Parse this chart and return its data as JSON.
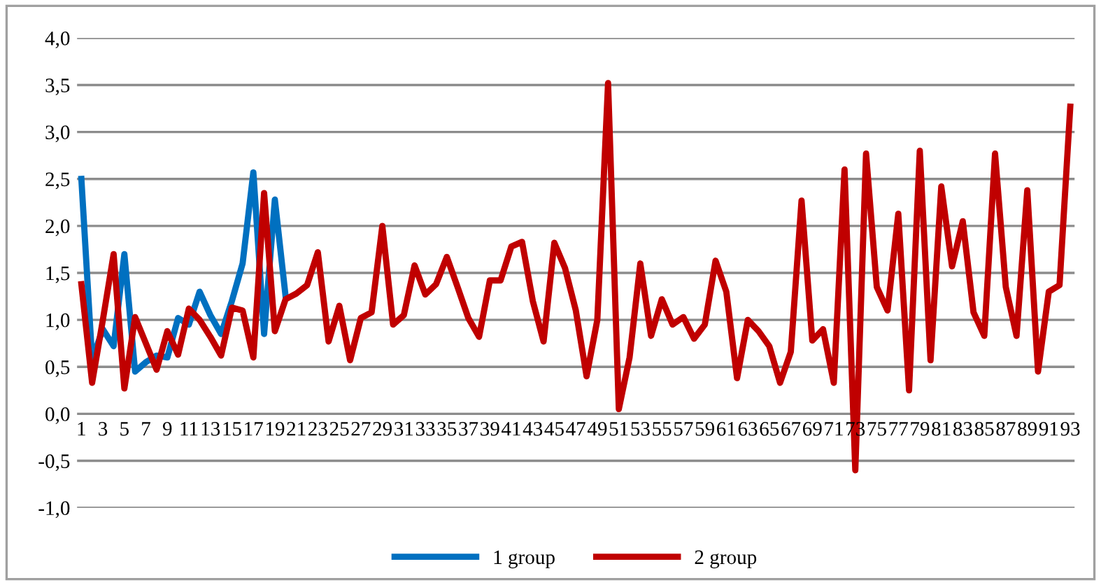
{
  "chart_data": {
    "type": "line",
    "categories": [
      "1",
      null,
      "3",
      null,
      "5",
      null,
      "7",
      null,
      "9",
      null,
      "11",
      null,
      "13",
      null,
      "15",
      null,
      "17",
      null,
      "19",
      null,
      "21",
      null,
      "23",
      null,
      "25",
      null,
      "27",
      null,
      "29",
      null,
      "31",
      null,
      "33",
      null,
      "35",
      null,
      "37",
      null,
      "39",
      null,
      "41",
      null,
      "43",
      null,
      "45",
      null,
      "47",
      null,
      "49",
      null,
      "51",
      null,
      "53",
      null,
      "55",
      null,
      "57",
      null,
      "59",
      null,
      "61",
      null,
      "63",
      null,
      "65",
      null,
      "67",
      null,
      "69",
      null,
      "71",
      null,
      "73",
      null,
      "75",
      null,
      "77",
      null,
      "79",
      null,
      "81",
      null,
      "83",
      null,
      "85",
      null,
      "87",
      null,
      "89",
      null,
      "91",
      null,
      "93"
    ],
    "series": [
      {
        "name": "1 group",
        "color": "#0070c0",
        "values": [
          2.5,
          0.58,
          0.9,
          0.72,
          1.7,
          0.45,
          0.55,
          0.62,
          0.6,
          1.02,
          0.95,
          1.3,
          1.05,
          0.85,
          1.2,
          1.6,
          2.57,
          0.85,
          2.28,
          1.25,
          null,
          null,
          null,
          null,
          null,
          null,
          null,
          null,
          null,
          null,
          null,
          null,
          null,
          null,
          null,
          null,
          null,
          null,
          null,
          null,
          null,
          null,
          null,
          null,
          null,
          null,
          null,
          null,
          null,
          null,
          null,
          null,
          null,
          null,
          null,
          null,
          null,
          null,
          null,
          null,
          null,
          null,
          null,
          null,
          null,
          null,
          null,
          null,
          null,
          null,
          null,
          null,
          null,
          null,
          null,
          null,
          null,
          null,
          null,
          null,
          null,
          null,
          null,
          null,
          null,
          null,
          null,
          null,
          null,
          null,
          null,
          null,
          null
        ]
      },
      {
        "name": "2 group",
        "color": "#c00000",
        "values": [
          1.38,
          0.33,
          1.0,
          1.7,
          0.27,
          1.03,
          0.75,
          0.47,
          0.88,
          0.63,
          1.12,
          1.0,
          0.82,
          0.62,
          1.13,
          1.1,
          0.6,
          2.35,
          0.88,
          1.22,
          1.28,
          1.37,
          1.72,
          0.77,
          1.15,
          0.57,
          1.02,
          1.08,
          2.0,
          0.95,
          1.05,
          1.58,
          1.27,
          1.38,
          1.67,
          1.35,
          1.02,
          0.82,
          1.42,
          1.42,
          1.78,
          1.83,
          1.2,
          0.77,
          1.82,
          1.55,
          1.1,
          0.4,
          1.0,
          3.52,
          0.05,
          0.6,
          1.6,
          0.83,
          1.22,
          0.95,
          1.03,
          0.8,
          0.95,
          1.63,
          1.3,
          0.38,
          1.0,
          0.88,
          0.72,
          0.33,
          0.66,
          2.27,
          0.78,
          0.9,
          0.33,
          2.6,
          -0.6,
          2.77,
          1.35,
          1.1,
          2.13,
          0.25,
          2.8,
          0.57,
          2.42,
          1.57,
          2.05,
          1.08,
          0.83,
          2.77,
          1.35,
          0.83,
          2.38,
          0.45,
          1.3,
          1.37,
          3.27
        ]
      }
    ],
    "ylim": [
      -1.0,
      4.0
    ],
    "yticks": [
      {
        "value": -1.0,
        "label": "-1,0"
      },
      {
        "value": -0.5,
        "label": "-0,5"
      },
      {
        "value": 0.0,
        "label": "0,0"
      },
      {
        "value": 0.5,
        "label": "0,5"
      },
      {
        "value": 1.0,
        "label": "1,0"
      },
      {
        "value": 1.5,
        "label": "1,5"
      },
      {
        "value": 2.0,
        "label": "2,0"
      },
      {
        "value": 2.5,
        "label": "2,5"
      },
      {
        "value": 3.0,
        "label": "3,0"
      },
      {
        "value": 3.5,
        "label": "3,5"
      },
      {
        "value": 4.0,
        "label": "4,0"
      }
    ],
    "grid": "y",
    "legend": "bottom",
    "marker": "none",
    "line_style": "solid"
  }
}
